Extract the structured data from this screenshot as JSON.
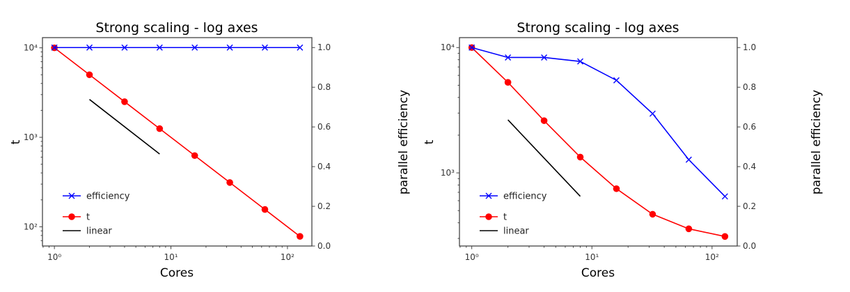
{
  "chart_data": [
    {
      "type": "line",
      "title": "Strong scaling - log axes",
      "xlabel": "Cores",
      "ylabel": "t",
      "y2label": "parallel efficiency",
      "xscale": "log",
      "yscale": "log",
      "y2scale": "linear",
      "xlim": [
        0.79,
        162
      ],
      "ylim": [
        61,
        13000
      ],
      "y2lim": [
        0,
        1.05
      ],
      "xticks": [
        {
          "v": 1,
          "label": "10⁰"
        },
        {
          "v": 10,
          "label": "10¹"
        },
        {
          "v": 100,
          "label": "10²"
        }
      ],
      "yticks": [
        {
          "v": 100,
          "label": "10²"
        },
        {
          "v": 1000,
          "label": "10³"
        },
        {
          "v": 10000,
          "label": "10⁴"
        }
      ],
      "y2ticks": [
        {
          "v": 0,
          "label": "0.0"
        },
        {
          "v": 0.2,
          "label": "0.2"
        },
        {
          "v": 0.4,
          "label": "0.4"
        },
        {
          "v": 0.6,
          "label": "0.6"
        },
        {
          "v": 0.8,
          "label": "0.8"
        },
        {
          "v": 1.0,
          "label": "1.0"
        }
      ],
      "grid": false,
      "legend": "lower-left",
      "series": [
        {
          "name": "efficiency",
          "axis": "right",
          "color": "#0000ff",
          "marker": "x",
          "x": [
            1,
            2,
            4,
            8,
            16,
            32,
            64,
            128
          ],
          "y": [
            1,
            1,
            1,
            1,
            1,
            1,
            1,
            1
          ]
        },
        {
          "name": "t",
          "axis": "left",
          "color": "#ff0000",
          "marker": "o",
          "x": [
            1,
            2,
            4,
            8,
            16,
            32,
            64,
            128
          ],
          "y": [
            10000,
            5000,
            2500,
            1250,
            625,
            312.5,
            156.25,
            78.125
          ]
        },
        {
          "name": "linear",
          "axis": "left",
          "color": "#000000",
          "marker": "none",
          "x": [
            2,
            8
          ],
          "y": [
            2650,
            650
          ]
        }
      ]
    },
    {
      "type": "line",
      "title": "Strong scaling - log axes",
      "xlabel": "Cores",
      "ylabel": "t",
      "y2label": "parallel efficiency",
      "xscale": "log",
      "yscale": "log",
      "y2scale": "linear",
      "xlim": [
        0.79,
        162
      ],
      "ylim": [
        261,
        12000
      ],
      "y2lim": [
        0,
        1.05
      ],
      "xticks": [
        {
          "v": 1,
          "label": "10⁰"
        },
        {
          "v": 10,
          "label": "10¹"
        },
        {
          "v": 100,
          "label": "10²"
        }
      ],
      "yticks": [
        {
          "v": 1000,
          "label": "10³"
        },
        {
          "v": 10000,
          "label": "10⁴"
        }
      ],
      "y2ticks": [
        {
          "v": 0,
          "label": "0.0"
        },
        {
          "v": 0.2,
          "label": "0.2"
        },
        {
          "v": 0.4,
          "label": "0.4"
        },
        {
          "v": 0.6,
          "label": "0.6"
        },
        {
          "v": 0.8,
          "label": "0.8"
        },
        {
          "v": 1.0,
          "label": "1.0"
        }
      ],
      "grid": false,
      "legend": "lower-left",
      "series": [
        {
          "name": "efficiency",
          "axis": "right",
          "color": "#0000ff",
          "marker": "x",
          "x": [
            1,
            2,
            4,
            8,
            16,
            32,
            64,
            128
          ],
          "y": [
            1.0,
            0.95,
            0.95,
            0.93,
            0.835,
            0.667,
            0.435,
            0.25
          ]
        },
        {
          "name": "t",
          "axis": "left",
          "color": "#ff0000",
          "marker": "o",
          "x": [
            1,
            2,
            4,
            8,
            16,
            32,
            64,
            128
          ],
          "y": [
            10000,
            5275,
            2610,
            1337,
            748,
            468,
            358,
            311
          ]
        },
        {
          "name": "linear",
          "axis": "left",
          "color": "#000000",
          "marker": "none",
          "x": [
            2,
            8
          ],
          "y": [
            2650,
            650
          ]
        }
      ]
    }
  ]
}
